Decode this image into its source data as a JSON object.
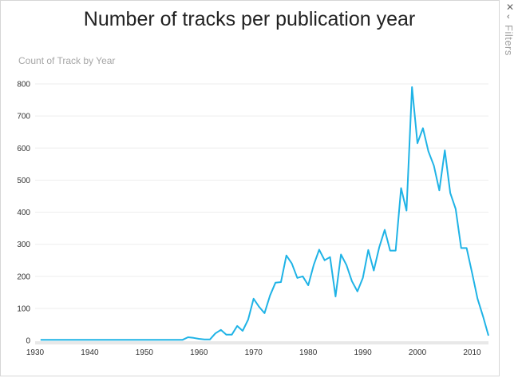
{
  "page": {
    "title": "Number of tracks per publication year"
  },
  "filters_pane": {
    "label": "Filters",
    "close_icon": "close-icon",
    "collapse_icon": "chevron-left-icon"
  },
  "colors": {
    "line": "#1fb3e6",
    "gridline": "#eeeeee",
    "axis_text": "#333333"
  },
  "chart_data": {
    "type": "line",
    "title": "Number of tracks per publication year",
    "subtitle": "Count of Track by Year",
    "xlabel": "",
    "ylabel": "",
    "xlim": [
      1930,
      2013
    ],
    "ylim": [
      0,
      800
    ],
    "x_ticks": [
      1930,
      1940,
      1950,
      1960,
      1970,
      1980,
      1990,
      2000,
      2010
    ],
    "y_ticks": [
      0,
      100,
      200,
      300,
      400,
      500,
      600,
      700,
      800
    ],
    "grid": true,
    "series": [
      {
        "x": [
          1931,
          1957,
          1958,
          1959,
          1960,
          1961,
          1962,
          1963,
          1964,
          1965,
          1966,
          1967,
          1968,
          1969,
          1970,
          1971,
          1972,
          1973,
          1974,
          1975,
          1976,
          1977,
          1978,
          1979,
          1980,
          1981,
          1982,
          1983,
          1984,
          1985,
          1986,
          1987,
          1988,
          1989,
          1990,
          1991,
          1992,
          1993,
          1994,
          1995,
          1996,
          1997,
          1998,
          1999,
          2000,
          2001,
          2002,
          2003,
          2004,
          2005,
          2006,
          2007,
          2008,
          2009,
          2010,
          2011,
          2012,
          2013
        ],
        "y": [
          2,
          2,
          10,
          8,
          5,
          3,
          3,
          22,
          33,
          18,
          18,
          45,
          30,
          65,
          130,
          105,
          85,
          140,
          180,
          182,
          265,
          240,
          195,
          200,
          172,
          235,
          283,
          250,
          260,
          137,
          268,
          235,
          185,
          153,
          195,
          282,
          218,
          290,
          345,
          280,
          280,
          475,
          405,
          790,
          615,
          662,
          590,
          545,
          468,
          593,
          460,
          410,
          288,
          288,
          210,
          130,
          75,
          15
        ]
      }
    ]
  }
}
